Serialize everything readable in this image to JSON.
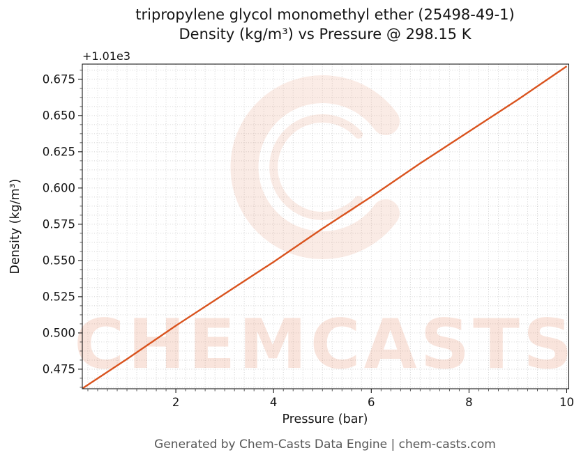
{
  "figure": {
    "title_line1": "tripropylene glycol monomethyl ether (25498-49-1)",
    "title_line2": "Density (kg/m³) vs Pressure @ 298.15 K",
    "footer": "Generated by Chem-Casts Data Engine | chem-casts.com"
  },
  "watermark": {
    "text": "CHEMCASTS",
    "color": "#d9531e",
    "text_opacity": 0.15,
    "logo_opacity": 0.11
  },
  "chart_data": {
    "type": "line",
    "title": "tripropylene glycol monomethyl ether (25498-49-1) — Density (kg/m³) vs Pressure @ 298.15 K",
    "xlabel": "Pressure (bar)",
    "ylabel": "Density (kg/m³)",
    "y_axis_offset_label": "+1.01e3",
    "y_offset": 1010,
    "xlim": [
      0.086,
      10.043
    ],
    "ylim": [
      1010.4615,
      1010.6855
    ],
    "xticks": [
      2,
      4,
      6,
      8,
      10
    ],
    "xtick_labels": [
      "2",
      "4",
      "6",
      "8",
      "10"
    ],
    "yticks": [
      1010.475,
      1010.5,
      1010.525,
      1010.55,
      1010.575,
      1010.6,
      1010.625,
      1010.65,
      1010.675
    ],
    "ytick_labels": [
      "0.475",
      "0.500",
      "0.525",
      "0.550",
      "0.575",
      "0.600",
      "0.625",
      "0.650",
      "0.675"
    ],
    "grid": {
      "visible": true,
      "linestyle": "dotted",
      "color": "#c8c8c8",
      "minor_x_step": 0.2,
      "minor_y_step": 0.00625
    },
    "legend": null,
    "series": [
      {
        "name": "Density",
        "color": "#d9531e",
        "line_width": 2.4,
        "x": [
          0.1,
          1,
          2,
          3,
          4,
          5,
          6,
          7,
          8,
          9,
          10
        ],
        "y": [
          1010.462,
          1010.482,
          1010.505,
          1010.527,
          1010.549,
          1010.572,
          1010.594,
          1010.617,
          1010.639,
          1010.661,
          1010.684
        ]
      }
    ]
  }
}
